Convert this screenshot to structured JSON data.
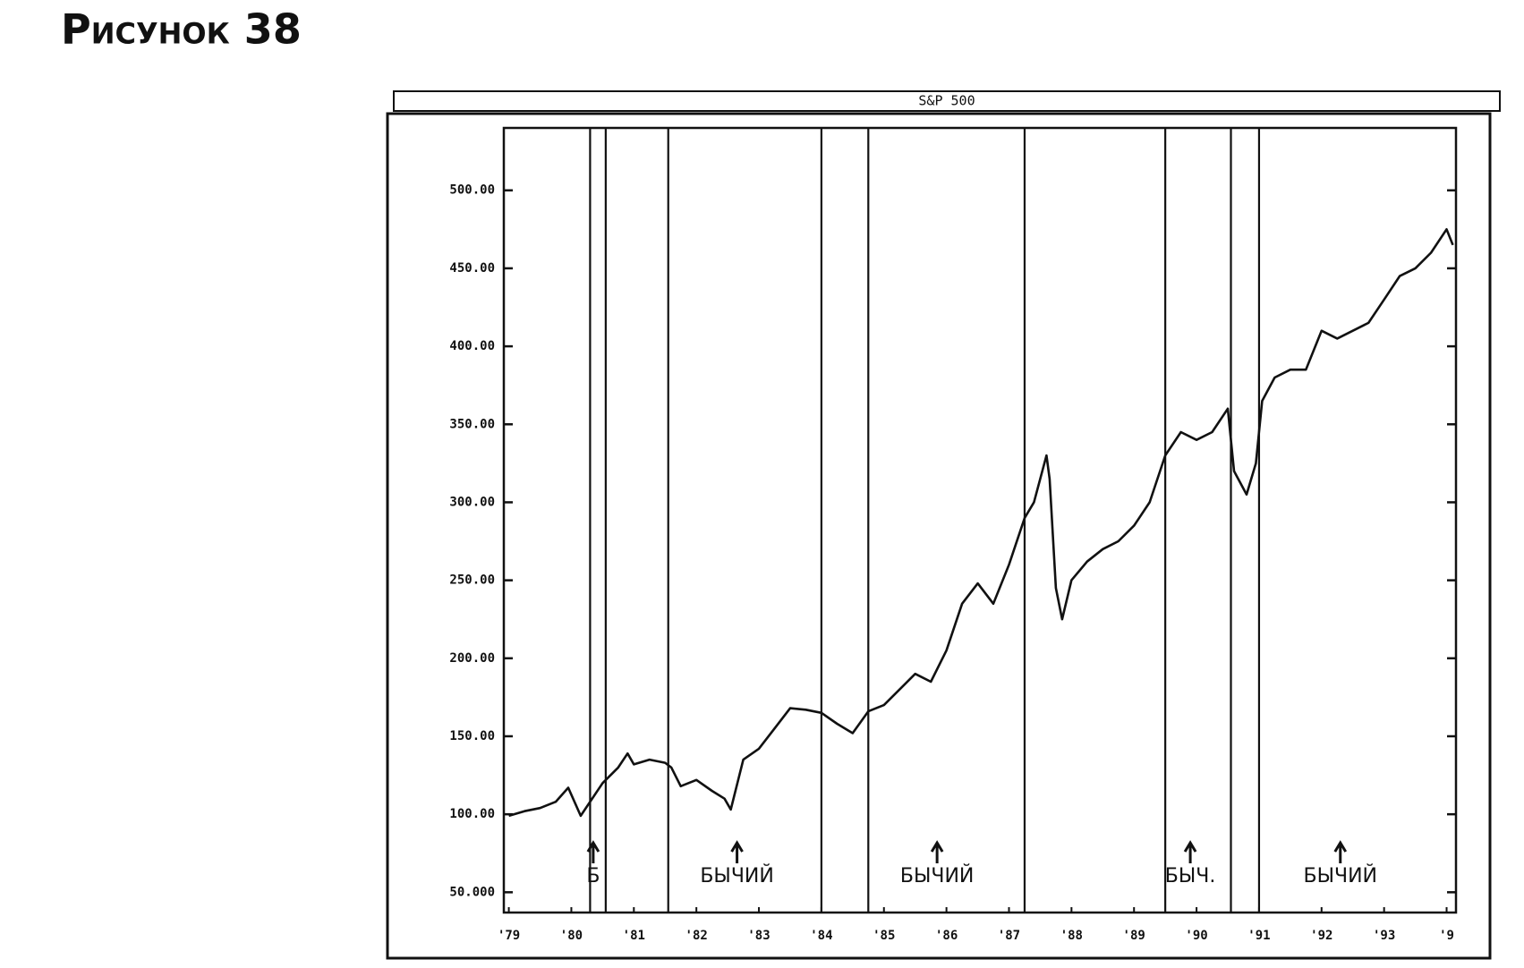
{
  "figure_title": "Рисунок 38",
  "chart_data": {
    "type": "line",
    "title": "S&P 500",
    "x": [
      1979.0,
      1979.25,
      1979.5,
      1979.75,
      1979.95,
      1980.15,
      1980.5,
      1980.75,
      1980.9,
      1981.0,
      1981.25,
      1981.5,
      1981.6,
      1981.75,
      1982.0,
      1982.25,
      1982.45,
      1982.55,
      1982.75,
      1983.0,
      1983.25,
      1983.5,
      1983.75,
      1984.0,
      1984.25,
      1984.5,
      1984.75,
      1985.0,
      1985.25,
      1985.5,
      1985.75,
      1986.0,
      1986.25,
      1986.5,
      1986.75,
      1987.0,
      1987.25,
      1987.4,
      1987.6,
      1987.65,
      1987.75,
      1987.85,
      1988.0,
      1988.25,
      1988.5,
      1988.75,
      1989.0,
      1989.25,
      1989.5,
      1989.75,
      1990.0,
      1990.25,
      1990.5,
      1990.6,
      1990.8,
      1990.95,
      1991.05,
      1991.25,
      1991.5,
      1991.75,
      1992.0,
      1992.25,
      1992.5,
      1992.75,
      1993.0,
      1993.25,
      1993.5,
      1993.75,
      1994.0,
      1994.1
    ],
    "series": [
      {
        "name": "S&P 500",
        "color": "#111111",
        "values": [
          99,
          102,
          104,
          108,
          117,
          99,
          120,
          130,
          139,
          132,
          135,
          133,
          130,
          118,
          122,
          115,
          110,
          103,
          135,
          142,
          155,
          168,
          167,
          165,
          158,
          152,
          166,
          170,
          180,
          190,
          185,
          205,
          235,
          248,
          235,
          260,
          290,
          300,
          330,
          315,
          245,
          225,
          250,
          262,
          270,
          275,
          285,
          300,
          330,
          345,
          340,
          345,
          360,
          320,
          305,
          325,
          365,
          380,
          385,
          385,
          410,
          405,
          410,
          415,
          430,
          445,
          450,
          460,
          475,
          465
        ]
      }
    ],
    "xlim": [
      1978.92,
      1994.15
    ],
    "ylim": [
      37,
      540
    ],
    "yticks": [
      {
        "value": 50,
        "label": "50.000"
      },
      {
        "value": 100,
        "label": "100.00"
      },
      {
        "value": 150,
        "label": "150.00"
      },
      {
        "value": 200,
        "label": "200.00"
      },
      {
        "value": 250,
        "label": "250.00"
      },
      {
        "value": 300,
        "label": "300.00"
      },
      {
        "value": 350,
        "label": "350.00"
      },
      {
        "value": 400,
        "label": "400.00"
      },
      {
        "value": 450,
        "label": "450.00"
      },
      {
        "value": 500,
        "label": "500.00"
      }
    ],
    "xticks": [
      {
        "value": 1979,
        "label": "'79"
      },
      {
        "value": 1980,
        "label": "'80"
      },
      {
        "value": 1981,
        "label": "'81"
      },
      {
        "value": 1982,
        "label": "'82"
      },
      {
        "value": 1983,
        "label": "'83"
      },
      {
        "value": 1984,
        "label": "'84"
      },
      {
        "value": 1985,
        "label": "'85"
      },
      {
        "value": 1986,
        "label": "'86"
      },
      {
        "value": 1987,
        "label": "'87"
      },
      {
        "value": 1988,
        "label": "'88"
      },
      {
        "value": 1989,
        "label": "'89"
      },
      {
        "value": 1990,
        "label": "'90"
      },
      {
        "value": 1991,
        "label": "'91"
      },
      {
        "value": 1992,
        "label": "'92"
      },
      {
        "value": 1993,
        "label": "'93"
      },
      {
        "value": 1994,
        "label": "'9"
      }
    ],
    "signal_lines": [
      1980.3,
      1980.55,
      1981.55,
      1984.0,
      1984.75,
      1987.25,
      1989.5,
      1990.55,
      1991.0
    ],
    "annotations": [
      {
        "text": "Б",
        "x": 1980.35
      },
      {
        "text": "БЫЧИЙ",
        "x": 1982.65
      },
      {
        "text": "БЫЧИЙ",
        "x": 1985.85
      },
      {
        "text": "БЫЧ.",
        "x": 1989.9
      },
      {
        "text": "БЫЧИЙ",
        "x": 1992.3
      }
    ]
  }
}
